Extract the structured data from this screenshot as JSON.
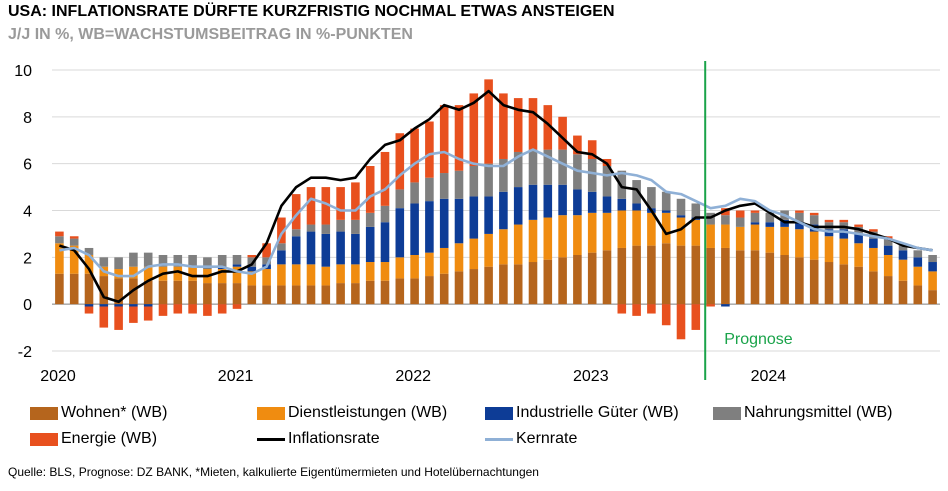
{
  "title": "USA: INFLATIONSRATE DÜRFTE KURZFRISTIG NOCHMAL ETWAS ANSTEIGEN",
  "subtitle": "J/J IN %, WB=WACHSTUMSBEITRAG IN %-PUNKTEN",
  "source": "Quelle: BLS, Prognose: DZ BANK, *Mieten, kalkulierte Eigentümermieten und Hotelübernachtungen",
  "chart_data": {
    "type": "bar",
    "stacked": true,
    "ylim": [
      -2,
      10
    ],
    "yticks": [
      -2,
      0,
      2,
      4,
      6,
      8,
      10
    ],
    "xticks": [
      {
        "label": "2020",
        "index": 0
      },
      {
        "label": "2021",
        "index": 12
      },
      {
        "label": "2022",
        "index": 24
      },
      {
        "label": "2023",
        "index": 36
      },
      {
        "label": "2024",
        "index": 48
      }
    ],
    "forecast_start_index": 44,
    "forecast_label": "Prognose",
    "n_months": 60,
    "series": [
      {
        "name": "Wohnen* (WB)",
        "color": "#b5651d",
        "type": "bar",
        "values": [
          1.3,
          1.3,
          1.3,
          1.2,
          1.1,
          1.1,
          1.0,
          1.0,
          1.0,
          1.0,
          0.9,
          0.9,
          0.9,
          0.8,
          0.8,
          0.8,
          0.8,
          0.8,
          0.8,
          0.9,
          0.9,
          1.0,
          1.0,
          1.1,
          1.1,
          1.2,
          1.3,
          1.4,
          1.5,
          1.6,
          1.7,
          1.7,
          1.8,
          1.9,
          2.0,
          2.1,
          2.2,
          2.3,
          2.4,
          2.5,
          2.5,
          2.6,
          2.5,
          2.5,
          2.4,
          2.4,
          2.3,
          2.3,
          2.2,
          2.1,
          2.0,
          1.9,
          1.8,
          1.7,
          1.6,
          1.4,
          1.2,
          1.0,
          0.8,
          0.6
        ]
      },
      {
        "name": "Dienstleistungen (WB)",
        "color": "#f08c10",
        "type": "bar",
        "values": [
          1.3,
          1.2,
          0.8,
          0.4,
          0.4,
          0.5,
          0.6,
          0.6,
          0.6,
          0.6,
          0.6,
          0.6,
          0.7,
          0.6,
          0.7,
          0.9,
          0.9,
          0.9,
          0.8,
          0.8,
          0.8,
          0.8,
          0.8,
          0.9,
          1.0,
          1.0,
          1.1,
          1.2,
          1.3,
          1.4,
          1.5,
          1.7,
          1.8,
          1.8,
          1.8,
          1.7,
          1.7,
          1.6,
          1.6,
          1.5,
          1.4,
          1.3,
          1.2,
          1.1,
          1.0,
          1.0,
          1.0,
          1.1,
          1.1,
          1.2,
          1.2,
          1.2,
          1.1,
          1.1,
          1.0,
          1.0,
          0.9,
          0.9,
          0.8,
          0.8
        ]
      },
      {
        "name": "Industrielle Güter (WB)",
        "color": "#0d3c96",
        "type": "bar",
        "values": [
          0.0,
          0.0,
          -0.1,
          -0.1,
          -0.1,
          -0.1,
          -0.1,
          0.0,
          0.0,
          0.0,
          0.0,
          0.1,
          0.1,
          0.2,
          0.2,
          0.6,
          1.2,
          1.4,
          1.4,
          1.4,
          1.3,
          1.5,
          1.7,
          2.1,
          2.2,
          2.2,
          2.1,
          1.9,
          1.8,
          1.6,
          1.6,
          1.6,
          1.5,
          1.4,
          1.3,
          1.1,
          0.9,
          0.7,
          0.5,
          0.3,
          0.2,
          0.1,
          0.1,
          0.1,
          0.0,
          -0.1,
          0.0,
          0.1,
          0.2,
          0.3,
          0.3,
          0.3,
          0.3,
          0.4,
          0.4,
          0.4,
          0.4,
          0.4,
          0.4,
          0.4
        ]
      },
      {
        "name": "Nahrungsmittel (WB)",
        "color": "#7f7f7f",
        "type": "bar",
        "values": [
          0.3,
          0.3,
          0.3,
          0.4,
          0.5,
          0.6,
          0.6,
          0.5,
          0.5,
          0.5,
          0.5,
          0.5,
          0.4,
          0.4,
          0.3,
          0.3,
          0.3,
          0.3,
          0.4,
          0.5,
          0.6,
          0.6,
          0.7,
          0.8,
          0.9,
          1.0,
          1.1,
          1.2,
          1.3,
          1.4,
          1.4,
          1.5,
          1.5,
          1.5,
          1.5,
          1.5,
          1.4,
          1.3,
          1.2,
          1.0,
          0.9,
          0.8,
          0.7,
          0.6,
          0.5,
          0.4,
          0.4,
          0.4,
          0.4,
          0.4,
          0.4,
          0.4,
          0.3,
          0.3,
          0.3,
          0.3,
          0.3,
          0.3,
          0.3,
          0.3
        ]
      },
      {
        "name": "Energie (WB)",
        "color": "#e8501e",
        "type": "bar",
        "values": [
          0.2,
          0.1,
          -0.3,
          -0.9,
          -1.0,
          -0.7,
          -0.6,
          -0.5,
          -0.4,
          -0.4,
          -0.5,
          -0.4,
          -0.2,
          0.1,
          0.6,
          1.1,
          1.5,
          1.6,
          1.6,
          1.4,
          1.6,
          2.0,
          2.3,
          2.4,
          2.3,
          2.4,
          2.9,
          2.8,
          3.1,
          3.6,
          2.8,
          2.3,
          2.2,
          1.9,
          1.4,
          0.8,
          0.8,
          0.3,
          -0.4,
          -0.5,
          -0.4,
          -0.9,
          -1.5,
          -1.1,
          -0.1,
          0.3,
          0.3,
          0.1,
          0.0,
          0.0,
          0.1,
          0.1,
          0.1,
          0.1,
          0.1,
          0.1,
          0.1,
          0.0,
          0.0,
          0.0
        ]
      },
      {
        "name": "Inflationsrate",
        "color": "#000000",
        "type": "line",
        "values": [
          2.5,
          2.3,
          1.5,
          0.3,
          0.1,
          0.6,
          1.0,
          1.3,
          1.4,
          1.2,
          1.2,
          1.4,
          1.4,
          1.7,
          2.6,
          4.2,
          5.0,
          5.4,
          5.4,
          5.3,
          5.4,
          6.2,
          6.8,
          7.0,
          7.5,
          7.9,
          8.5,
          8.3,
          8.6,
          9.1,
          8.5,
          8.3,
          8.2,
          7.7,
          7.1,
          6.5,
          6.4,
          6.0,
          5.0,
          4.9,
          4.0,
          3.0,
          3.2,
          3.7,
          3.7,
          4.0,
          4.2,
          4.3,
          3.9,
          3.5,
          3.5,
          3.3,
          3.3,
          3.3,
          3.2,
          3.0,
          2.8,
          2.5,
          2.4,
          2.3
        ]
      },
      {
        "name": "Kernrate",
        "color": "#8fb0d6",
        "type": "line",
        "values": [
          2.3,
          2.4,
          2.1,
          1.4,
          1.2,
          1.2,
          1.6,
          1.7,
          1.7,
          1.6,
          1.6,
          1.6,
          1.4,
          1.3,
          1.6,
          3.0,
          3.8,
          4.5,
          4.3,
          4.0,
          4.0,
          4.6,
          4.9,
          5.5,
          6.0,
          6.4,
          6.5,
          6.2,
          6.0,
          5.9,
          5.9,
          6.3,
          6.6,
          6.3,
          6.0,
          5.7,
          5.6,
          5.5,
          5.6,
          5.5,
          5.3,
          4.8,
          4.7,
          4.4,
          4.1,
          4.2,
          4.5,
          4.4,
          4.0,
          3.8,
          3.5,
          3.2,
          3.1,
          3.1,
          3.0,
          2.9,
          2.8,
          2.6,
          2.4,
          2.3
        ]
      }
    ]
  },
  "legend": [
    {
      "label": "Wohnen* (WB)",
      "color": "#b5651d",
      "kind": "box"
    },
    {
      "label": "Dienstleistungen (WB)",
      "color": "#f08c10",
      "kind": "box"
    },
    {
      "label": "Industrielle Güter (WB)",
      "color": "#0d3c96",
      "kind": "box"
    },
    {
      "label": "Nahrungsmittel (WB)",
      "color": "#7f7f7f",
      "kind": "box"
    },
    {
      "label": "Energie (WB)",
      "color": "#e8501e",
      "kind": "box"
    },
    {
      "label": "Inflationsrate",
      "color": "#000000",
      "kind": "line"
    },
    {
      "label": "Kernrate",
      "color": "#8fb0d6",
      "kind": "line"
    }
  ]
}
